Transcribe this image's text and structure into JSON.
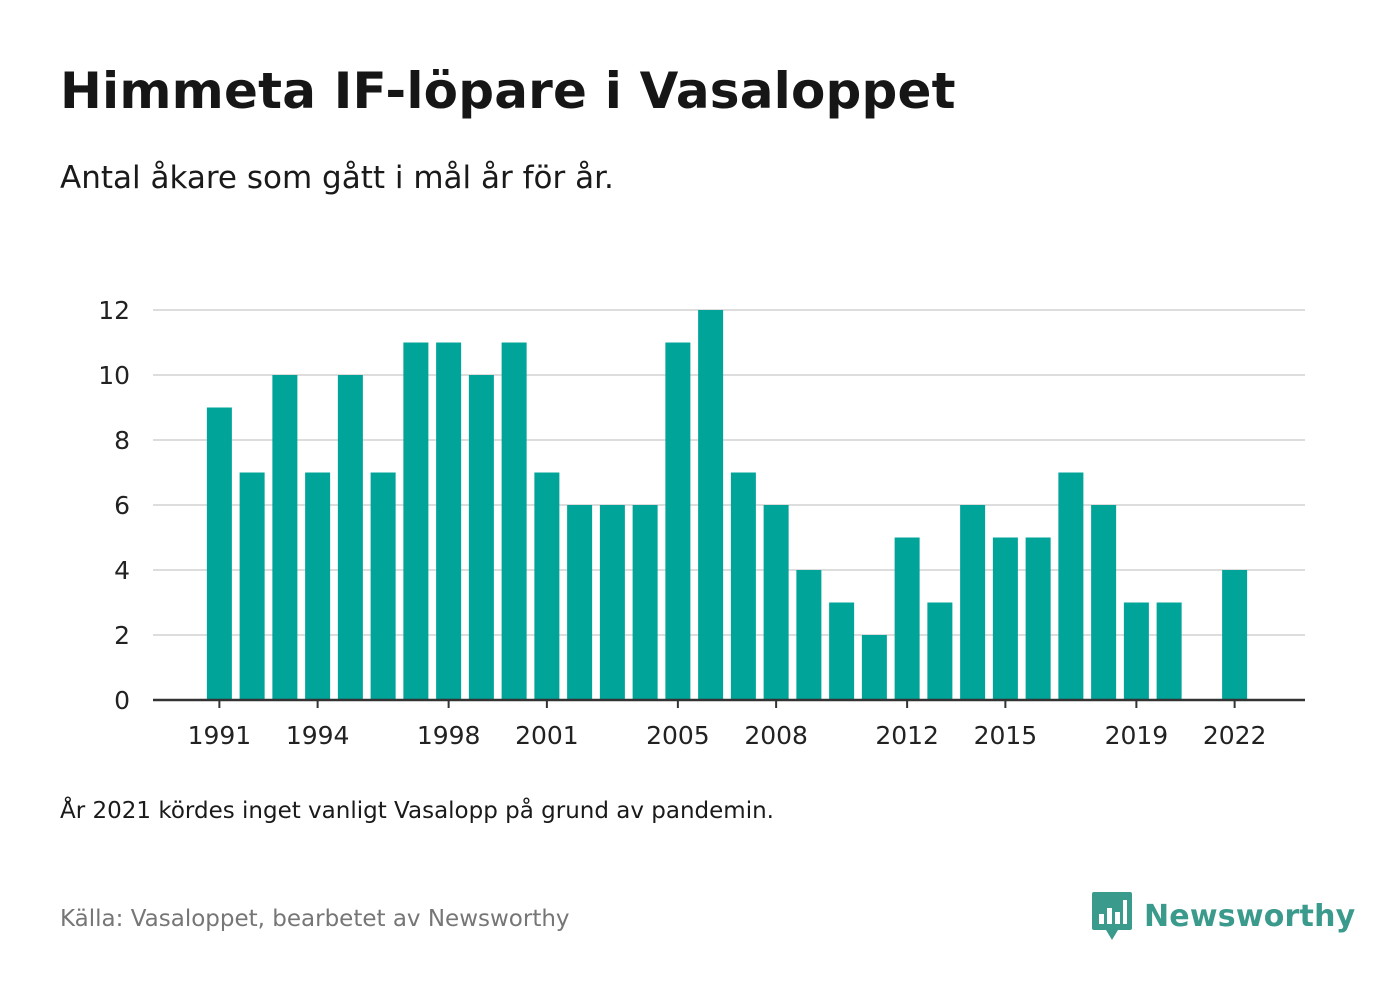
{
  "header": {
    "title": "Himmeta IF-löpare i Vasaloppet",
    "subtitle": "Antal åkare som gått i mål år för år."
  },
  "footer": {
    "note": "År 2021 kördes inget vanligt Vasalopp på grund av pandemin.",
    "source": "Källa: Vasaloppet, bearbetet av Newsworthy",
    "brand_name": "Newsworthy",
    "brand_icon": "newsworthy-logo-icon",
    "brand_color": "#3a9a8c"
  },
  "chart_data": {
    "type": "bar",
    "categories": [
      "1991",
      "1992",
      "1993",
      "1994",
      "1995",
      "1996",
      "1997",
      "1998",
      "1999",
      "2000",
      "2001",
      "2002",
      "2003",
      "2004",
      "2005",
      "2006",
      "2007",
      "2008",
      "2009",
      "2010",
      "2011",
      "2012",
      "2013",
      "2014",
      "2015",
      "2016",
      "2017",
      "2018",
      "2019",
      "2020",
      "2021",
      "2022"
    ],
    "values": [
      9,
      7,
      10,
      7,
      10,
      7,
      11,
      11,
      10,
      11,
      7,
      6,
      6,
      6,
      11,
      12,
      7,
      6,
      4,
      3,
      2,
      5,
      3,
      6,
      5,
      5,
      7,
      6,
      3,
      3,
      null,
      4
    ],
    "xticks": [
      "1991",
      "1994",
      "1998",
      "2001",
      "2005",
      "2008",
      "2012",
      "2015",
      "2019",
      "2022"
    ],
    "yticks": [
      0,
      2,
      4,
      6,
      8,
      10,
      12
    ],
    "ylim": [
      0,
      12
    ],
    "grid": true,
    "bar_color": "#00a499",
    "grid_color": "#dddddd",
    "axis_color": "#333333"
  }
}
